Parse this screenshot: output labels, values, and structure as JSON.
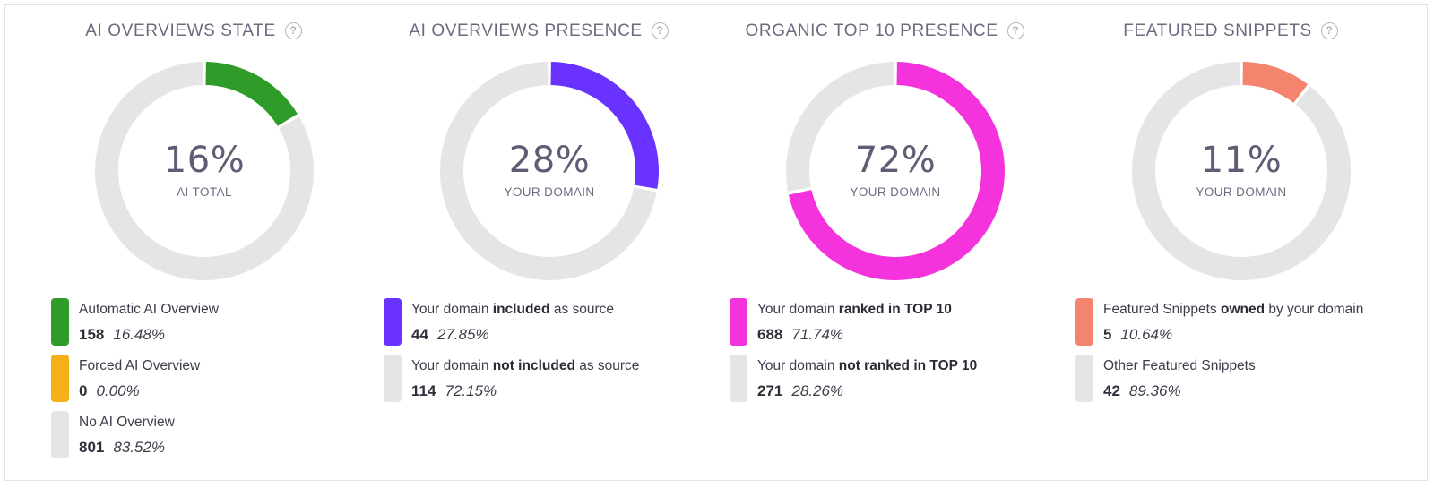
{
  "chart_data": [
    {
      "type": "pie",
      "title": "AI OVERVIEWS STATE",
      "center_value": "16%",
      "center_label": "AI TOTAL",
      "slices": [
        {
          "label_parts": [
            {
              "t": "Automatic AI Overview",
              "b": false
            }
          ],
          "count": "158",
          "percent_text": "16.48%",
          "value": 16.48,
          "color": "#2f9c2a"
        },
        {
          "label_parts": [
            {
              "t": "Forced AI Overview",
              "b": false
            }
          ],
          "count": "0",
          "percent_text": "0.00%",
          "value": 0.0,
          "color": "#f4b019"
        },
        {
          "label_parts": [
            {
              "t": "No AI Overview",
              "b": false
            }
          ],
          "count": "801",
          "percent_text": "83.52%",
          "value": 83.52,
          "color": "#e5e5e5"
        }
      ]
    },
    {
      "type": "pie",
      "title": "AI OVERVIEWS PRESENCE",
      "center_value": "28%",
      "center_label": "YOUR DOMAIN",
      "slices": [
        {
          "label_parts": [
            {
              "t": "Your domain ",
              "b": false
            },
            {
              "t": "included",
              "b": true
            },
            {
              "t": " as source",
              "b": false
            }
          ],
          "count": "44",
          "percent_text": "27.85%",
          "value": 27.85,
          "color": "#6a32ff"
        },
        {
          "label_parts": [
            {
              "t": "Your domain ",
              "b": false
            },
            {
              "t": "not included",
              "b": true
            },
            {
              "t": " as source",
              "b": false
            }
          ],
          "count": "114",
          "percent_text": "72.15%",
          "value": 72.15,
          "color": "#e5e5e5"
        }
      ]
    },
    {
      "type": "pie",
      "title": "ORGANIC TOP 10 PRESENCE",
      "center_value": "72%",
      "center_label": "YOUR DOMAIN",
      "slices": [
        {
          "label_parts": [
            {
              "t": "Your domain ",
              "b": false
            },
            {
              "t": "ranked in TOP 10",
              "b": true
            }
          ],
          "count": "688",
          "percent_text": "71.74%",
          "value": 71.74,
          "color": "#f433dd"
        },
        {
          "label_parts": [
            {
              "t": "Your domain ",
              "b": false
            },
            {
              "t": "not ranked in TOP 10",
              "b": true
            }
          ],
          "count": "271",
          "percent_text": "28.26%",
          "value": 28.26,
          "color": "#e5e5e5"
        }
      ]
    },
    {
      "type": "pie",
      "title": "FEATURED SNIPPETS",
      "center_value": "11%",
      "center_label": "YOUR DOMAIN",
      "slices": [
        {
          "label_parts": [
            {
              "t": "Featured Snippets ",
              "b": false
            },
            {
              "t": "owned",
              "b": true
            },
            {
              "t": " by your domain",
              "b": false
            }
          ],
          "count": "5",
          "percent_text": "10.64%",
          "value": 10.64,
          "color": "#f5846f"
        },
        {
          "label_parts": [
            {
              "t": "Other Featured Snippets",
              "b": false
            }
          ],
          "count": "42",
          "percent_text": "89.36%",
          "value": 89.36,
          "color": "#e5e5e5"
        }
      ]
    }
  ],
  "icons": {
    "help": "question-circle-icon"
  },
  "help_glyph": "?"
}
